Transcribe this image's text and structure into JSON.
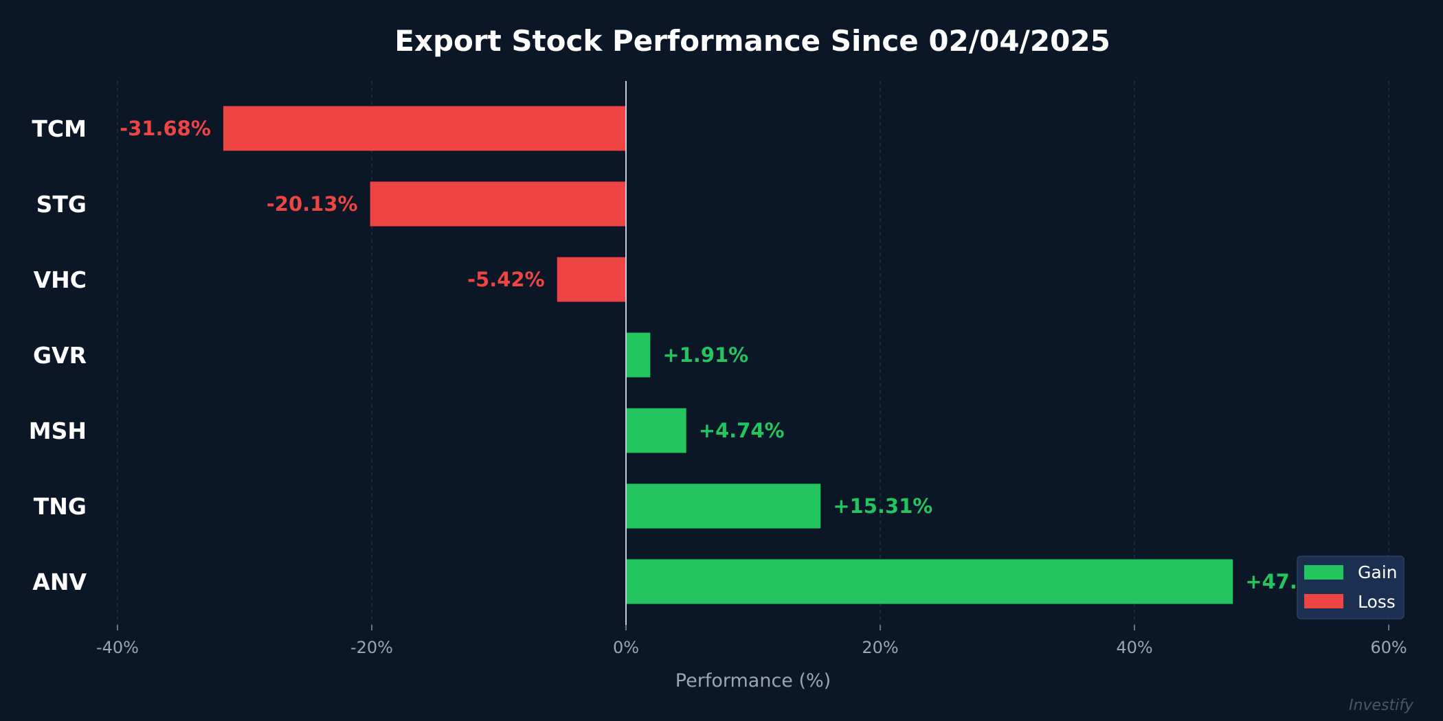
{
  "chart_data": {
    "type": "bar",
    "orientation": "horizontal",
    "title": "Export Stock Performance Since 02/04/2025",
    "xlabel": "Performance (%)",
    "ylabel": "",
    "categories": [
      "TCM",
      "STG",
      "VHC",
      "GVR",
      "MSH",
      "TNG",
      "ANV"
    ],
    "values": [
      -31.68,
      -20.13,
      -5.42,
      1.91,
      4.74,
      15.31,
      47.74
    ],
    "data_labels": [
      "-31.68%",
      "-20.13%",
      "-5.42%",
      "+1.91%",
      "+4.74%",
      "+15.31%",
      "+47.74%"
    ],
    "xlim": [
      -40,
      60
    ],
    "xticks": [
      -40,
      -20,
      0,
      20,
      40,
      60
    ],
    "xtick_labels": [
      "-40%",
      "-20%",
      "0%",
      "20%",
      "40%",
      "60%"
    ],
    "grid": "vertical dashed",
    "legend": {
      "placement": "bottom-right",
      "entries": [
        {
          "label": "Gain",
          "color": "#22c55e"
        },
        {
          "label": "Loss",
          "color": "#ef4444"
        }
      ]
    },
    "colors": {
      "gain": "#22c55e",
      "loss": "#ef4444",
      "background": "#0b1627"
    }
  },
  "watermark": "Investify"
}
